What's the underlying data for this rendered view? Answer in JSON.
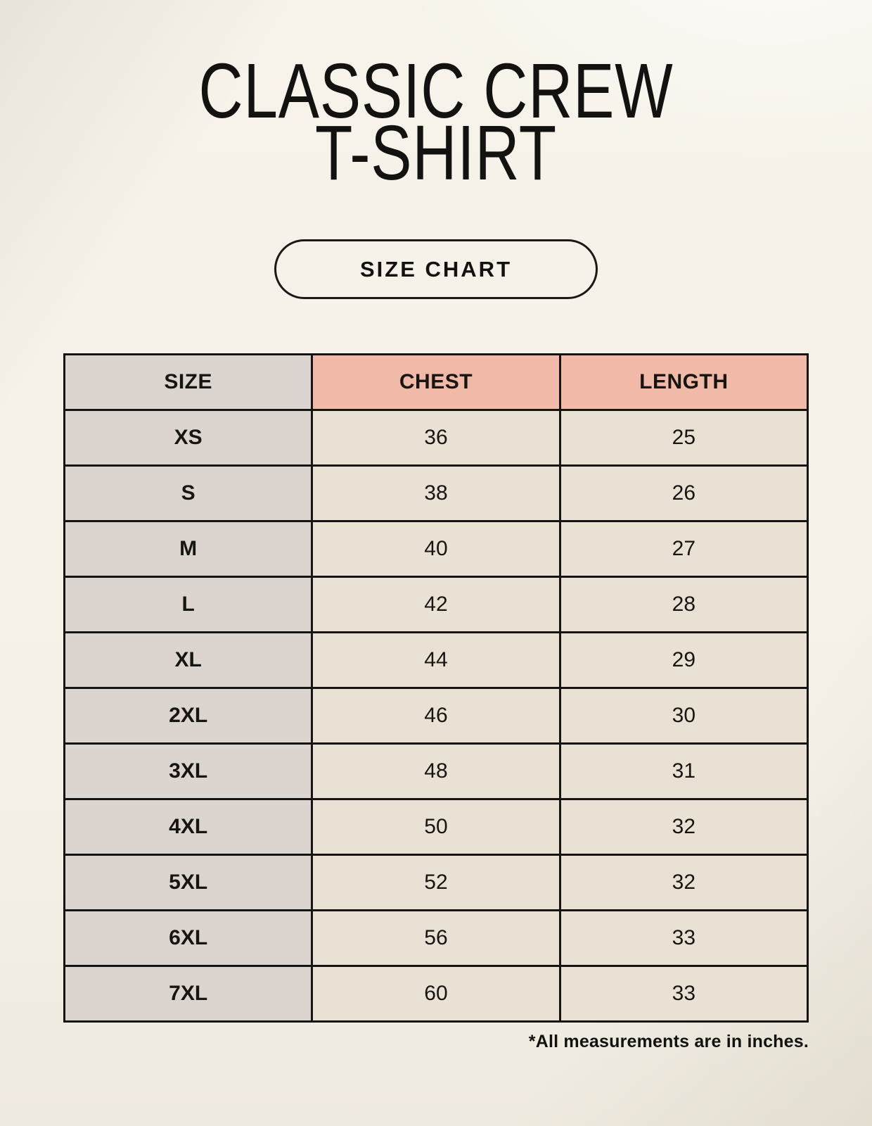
{
  "page": {
    "title_line1": "CLASSIC CREW",
    "title_line2": "T-SHIRT",
    "size_chart_button": "SIZE CHART",
    "footnote": "*All measurements are in inches."
  },
  "colors": {
    "page_background": "#f5f1e8",
    "header_accent": "#f0b9a8",
    "size_column": "#dcd5cf",
    "value_cell": "#e9e1d4",
    "grid_border": "#151412",
    "text": "#131210"
  },
  "table": {
    "columns": [
      "SIZE",
      "CHEST",
      "LENGTH"
    ],
    "rows": [
      {
        "size": "XS",
        "chest": "36",
        "length": "25"
      },
      {
        "size": "S",
        "chest": "38",
        "length": "26"
      },
      {
        "size": "M",
        "chest": "40",
        "length": "27"
      },
      {
        "size": "L",
        "chest": "42",
        "length": "28"
      },
      {
        "size": "XL",
        "chest": "44",
        "length": "29"
      },
      {
        "size": "2XL",
        "chest": "46",
        "length": "30"
      },
      {
        "size": "3XL",
        "chest": "48",
        "length": "31"
      },
      {
        "size": "4XL",
        "chest": "50",
        "length": "32"
      },
      {
        "size": "5XL",
        "chest": "52",
        "length": "32"
      },
      {
        "size": "6XL",
        "chest": "56",
        "length": "33"
      },
      {
        "size": "7XL",
        "chest": "60",
        "length": "33"
      }
    ]
  }
}
